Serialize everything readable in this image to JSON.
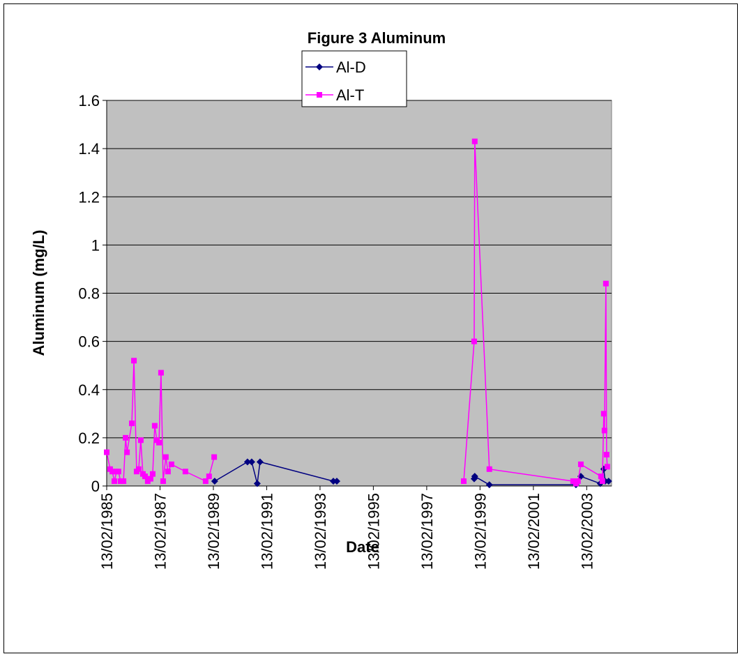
{
  "chart_data": {
    "type": "line",
    "title": "Figure 3 Aluminum",
    "x_label": "Date",
    "y_label": "Aluminum (mg/L)",
    "xlim": [
      "1985-02-13",
      "2004-01-20"
    ],
    "xticks": [
      {
        "value": "1985-02-13",
        "label": "13/02/1985"
      },
      {
        "value": "1987-02-13",
        "label": "13/02/1987"
      },
      {
        "value": "1989-02-13",
        "label": "13/02/1989"
      },
      {
        "value": "1991-02-13",
        "label": "13/02/1991"
      },
      {
        "value": "1993-02-13",
        "label": "13/02/1993"
      },
      {
        "value": "1995-02-13",
        "label": "13/02/1995"
      },
      {
        "value": "1997-02-13",
        "label": "13/02/1997"
      },
      {
        "value": "1999-02-13",
        "label": "13/02/1999"
      },
      {
        "value": "2001-02-13",
        "label": "13/02/2001"
      },
      {
        "value": "2003-02-13",
        "label": "13/02/2003"
      }
    ],
    "ylim": [
      0,
      1.6
    ],
    "yticks": [
      0,
      0.2,
      0.4,
      0.6,
      0.8,
      1,
      1.2,
      1.4,
      1.6
    ],
    "grid": true,
    "series": [
      {
        "name": "Al-D",
        "color": "#000080",
        "marker": "diamond",
        "x": [
          "1989-03-03",
          "1990-05-26",
          "1990-07-23",
          "1990-10-07",
          "1990-11-14",
          "1993-08-14",
          "1993-10-01",
          null,
          "1998-11-25",
          "1998-12-03",
          "1999-06-21",
          "2002-09-19",
          "2002-11-25",
          "2003-08-18",
          "2003-10-05",
          "2003-10-24",
          "2003-12-10"
        ],
        "values": [
          0.02,
          0.1,
          0.1,
          0.01,
          0.1,
          0.02,
          0.02,
          null,
          0.03,
          0.04,
          0.005,
          0.005,
          0.04,
          0.01,
          0.07,
          0.02,
          0.02
        ]
      },
      {
        "name": "Al-T",
        "color": "#ff00ff",
        "marker": "square",
        "x": [
          "1985-02-13",
          "1985-04-01",
          "1985-05-01",
          "1985-05-29",
          "1985-06-28",
          "1985-07-24",
          "1985-08-22",
          "1985-10-01",
          "1985-10-30",
          "1985-11-18",
          "1986-01-23",
          "1986-02-21",
          "1986-03-30",
          "1986-04-27",
          "1986-05-26",
          "1986-06-24",
          "1986-07-23",
          "1986-08-29",
          "1986-10-07",
          "1986-11-05",
          "1986-12-03",
          "1987-01-01",
          "1987-01-30",
          "1987-02-27",
          "1987-03-28",
          "1987-05-04",
          "1987-06-02",
          "1987-07-20",
          "1988-01-27",
          "1988-10-30",
          "1988-12-16",
          "1989-02-24",
          null,
          "1998-07-05",
          "1998-11-25",
          "1998-12-03",
          "1999-06-21",
          "2002-08-11",
          "2002-09-19",
          "2002-10-16",
          "2002-11-25",
          "2003-08-28",
          "2003-09-16",
          "2003-10-05",
          "2003-10-15",
          "2003-11-03",
          "2003-11-13",
          "2003-11-22"
        ],
        "values": [
          0.14,
          0.07,
          0.06,
          0.02,
          0.06,
          0.06,
          0.02,
          0.02,
          0.2,
          0.14,
          0.26,
          0.52,
          0.06,
          0.07,
          0.19,
          0.05,
          0.04,
          0.02,
          0.03,
          0.05,
          0.25,
          0.19,
          0.18,
          0.47,
          0.02,
          0.12,
          0.06,
          0.09,
          0.06,
          0.02,
          0.04,
          0.12,
          null,
          0.02,
          0.6,
          1.43,
          0.07,
          0.02,
          0.01,
          0.02,
          0.09,
          0.04,
          0.02,
          0.3,
          0.23,
          0.84,
          0.13,
          0.08
        ]
      }
    ],
    "legend": "top"
  }
}
